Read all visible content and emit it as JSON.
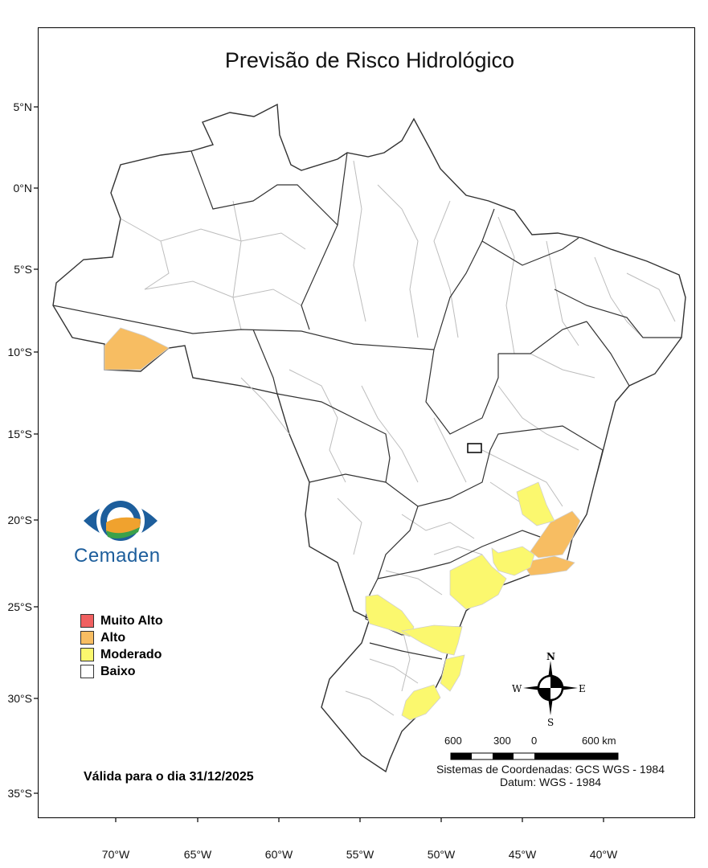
{
  "map": {
    "title": "Previsão de Risco Hidrológico",
    "lat_ticks": [
      "5°N",
      "0°N",
      "5°S",
      "10°S",
      "15°S",
      "20°S",
      "25°S",
      "30°S",
      "35°S"
    ],
    "lon_ticks": [
      "70°W",
      "65°W",
      "60°W",
      "55°W",
      "50°W",
      "45°W",
      "40°W"
    ],
    "validity": "Válida para o dia 31/12/2025",
    "crs_line1": "Sistemas de Coordenadas: GCS WGS - 1984",
    "crs_line2": "Datum: WGS - 1984",
    "scale_labels": [
      "600",
      "300",
      "0",
      "600 km"
    ],
    "compass": {
      "n": "N",
      "s": "S",
      "e": "E",
      "w": "W"
    },
    "logo_name": "Cemaden",
    "colors": {
      "muito_alto": "#f06060",
      "alto": "#f7bd62",
      "moderado": "#fbf86e",
      "baixo": "#ffffff",
      "state_border": "#333333",
      "region_border": "#bdbdbd"
    }
  },
  "legend": [
    {
      "label": "Muito Alto",
      "color": "#f06060"
    },
    {
      "label": "Alto",
      "color": "#f7bd62"
    },
    {
      "label": "Moderado",
      "color": "#fbf86e"
    },
    {
      "label": "Baixo",
      "color": "#ffffff"
    }
  ]
}
